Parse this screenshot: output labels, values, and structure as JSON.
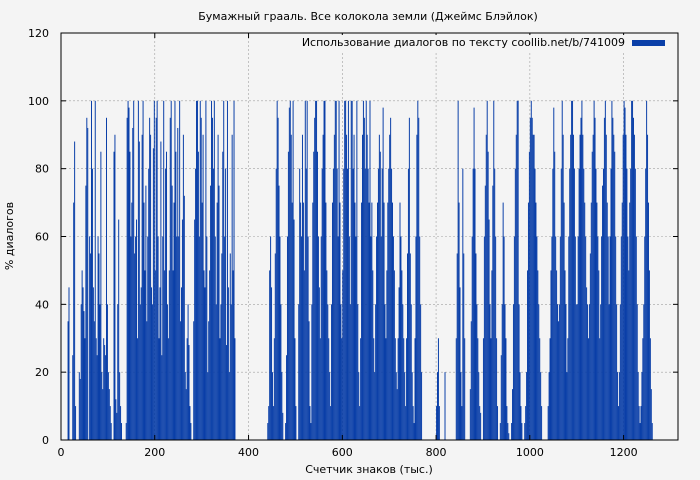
{
  "chart_data": {
    "type": "bar",
    "title": "Бумажный грааль. Все колокола земли (Джеймс Блэйлок)",
    "xlabel": "Счетчик знаков (тыс.)",
    "ylabel": "% диалогов",
    "xlim": [
      0,
      1316
    ],
    "ylim": [
      0,
      120
    ],
    "xticks": [
      "0",
      "200",
      "400",
      "600",
      "800",
      "1000",
      "1200"
    ],
    "xtick_values": [
      0,
      200,
      400,
      600,
      800,
      1000,
      1200
    ],
    "yticks": [
      "0",
      "20",
      "40",
      "60",
      "80",
      "100",
      "120"
    ],
    "ytick_values": [
      0,
      20,
      40,
      60,
      80,
      100,
      120
    ],
    "grid": true,
    "legend_position": "top-right",
    "bar_color": "#0a3fa8",
    "bar_step": 2,
    "series": [
      {
        "name": "Использование диалогов по тексту coollib.net/b/741009",
        "x_start": 0,
        "values": [
          0,
          0,
          0,
          0,
          0,
          0,
          0,
          35,
          45,
          0,
          0,
          0,
          25,
          70,
          88,
          10,
          0,
          0,
          0,
          20,
          18,
          40,
          50,
          45,
          38,
          30,
          75,
          95,
          92,
          0,
          60,
          55,
          100,
          80,
          45,
          35,
          100,
          30,
          25,
          60,
          55,
          40,
          85,
          20,
          15,
          30,
          28,
          25,
          95,
          40,
          20,
          15,
          10,
          5,
          0,
          0,
          85,
          90,
          12,
          8,
          40,
          65,
          20,
          10,
          5,
          0,
          0,
          0,
          0,
          5,
          95,
          100,
          98,
          85,
          60,
          70,
          92,
          100,
          55,
          60,
          65,
          30,
          100,
          88,
          40,
          45,
          90,
          100,
          70,
          50,
          75,
          35,
          60,
          80,
          95,
          90,
          45,
          40,
          86,
          100,
          50,
          95,
          100,
          60,
          30,
          45,
          88,
          25,
          60,
          100,
          50,
          80,
          85,
          40,
          30,
          50,
          95,
          100,
          75,
          50,
          70,
          100,
          85,
          60,
          92,
          60,
          100,
          35,
          45,
          65,
          90,
          72,
          20,
          15,
          30,
          40,
          28,
          10,
          5,
          0,
          0,
          35,
          65,
          80,
          100,
          100,
          85,
          60,
          100,
          95,
          70,
          90,
          50,
          45,
          100,
          60,
          20,
          35,
          50,
          75,
          100,
          95,
          80,
          100,
          60,
          40,
          70,
          90,
          75,
          30,
          40,
          55,
          85,
          100,
          60,
          80,
          28,
          100,
          45,
          20,
          55,
          40,
          90,
          50,
          100,
          30,
          0,
          0,
          0,
          0,
          0,
          0,
          0,
          0,
          0,
          0,
          0,
          0,
          0,
          0,
          0,
          0,
          0,
          0,
          0,
          0,
          0,
          0,
          0,
          0,
          0,
          0,
          0,
          0,
          0,
          0,
          0,
          0,
          0,
          0,
          5,
          10,
          50,
          60,
          45,
          20,
          10,
          30,
          55,
          80,
          100,
          95,
          75,
          60,
          40,
          20,
          8,
          0,
          0,
          5,
          25,
          60,
          85,
          98,
          100,
          90,
          70,
          100,
          65,
          30,
          10,
          0,
          0,
          40,
          80,
          70,
          60,
          90,
          70,
          50,
          100,
          80,
          100,
          60,
          35,
          10,
          5,
          40,
          70,
          85,
          95,
          100,
          100,
          85,
          60,
          45,
          30,
          60,
          80,
          90,
          100,
          100,
          70,
          50,
          40,
          30,
          20,
          10,
          40,
          70,
          80,
          90,
          100,
          100,
          80,
          60,
          100,
          70,
          40,
          30,
          50,
          80,
          100,
          100,
          90,
          80,
          100,
          60,
          40,
          100,
          100,
          80,
          90,
          70,
          60,
          100,
          40,
          20,
          10,
          30,
          70,
          90,
          100,
          95,
          80,
          100,
          90,
          80,
          70,
          100,
          60,
          70,
          50,
          30,
          20,
          40,
          60,
          70,
          80,
          90,
          85,
          60,
          80,
          98,
          70,
          40,
          30,
          50,
          70,
          80,
          90,
          95,
          80,
          70,
          60,
          50,
          30,
          20,
          15,
          30,
          45,
          70,
          60,
          50,
          40,
          30,
          20,
          10,
          30,
          55,
          80,
          95,
          55,
          40,
          20,
          10,
          5,
          30,
          60,
          90,
          100,
          95,
          60,
          40,
          20,
          0,
          0,
          0,
          0,
          0,
          0,
          0,
          0,
          0,
          0,
          0,
          0,
          0,
          0,
          0,
          10,
          20,
          30,
          10,
          0,
          0,
          0,
          0,
          0,
          20,
          0,
          0,
          0,
          0,
          0,
          0,
          0,
          0,
          0,
          0,
          0,
          30,
          55,
          100,
          70,
          45,
          20,
          10,
          80,
          55,
          30,
          0,
          0,
          0,
          0,
          0,
          15,
          35,
          60,
          80,
          98,
          80,
          55,
          40,
          30,
          20,
          10,
          8,
          0,
          0,
          30,
          60,
          75,
          90,
          100,
          85,
          65,
          40,
          30,
          50,
          75,
          100,
          80,
          60,
          30,
          10,
          0,
          0,
          5,
          25,
          40,
          70,
          60,
          40,
          30,
          10,
          5,
          2,
          0,
          0,
          5,
          15,
          40,
          60,
          80,
          90,
          100,
          100,
          40,
          20,
          10,
          5,
          0,
          0,
          5,
          10,
          20,
          50,
          70,
          85,
          95,
          100,
          95,
          90,
          90,
          80,
          70,
          60,
          50,
          40,
          30,
          20,
          10,
          0,
          0,
          0,
          0,
          0,
          0,
          10,
          20,
          30,
          50,
          60,
          80,
          98,
          85,
          60,
          50,
          40,
          35,
          40,
          60,
          80,
          100,
          90,
          70,
          50,
          40,
          20,
          30,
          60,
          80,
          90,
          100,
          100,
          90,
          80,
          60,
          40,
          40,
          60,
          80,
          90,
          95,
          100,
          90,
          80,
          70,
          60,
          45,
          40,
          30,
          40,
          55,
          70,
          85,
          90,
          100,
          95,
          80,
          70,
          60,
          50,
          30,
          40,
          60,
          75,
          80,
          95,
          100,
          90,
          70,
          60,
          40,
          60,
          80,
          100,
          95,
          90,
          85,
          60,
          40,
          20,
          10,
          20,
          40,
          60,
          70,
          90,
          100,
          98,
          90,
          80,
          60,
          50,
          70,
          80,
          100,
          100,
          95,
          90,
          80,
          60,
          40,
          20,
          10,
          5,
          10,
          20,
          30,
          40,
          60,
          80,
          100,
          90,
          70,
          50,
          30,
          15,
          5,
          0
        ]
      }
    ]
  }
}
